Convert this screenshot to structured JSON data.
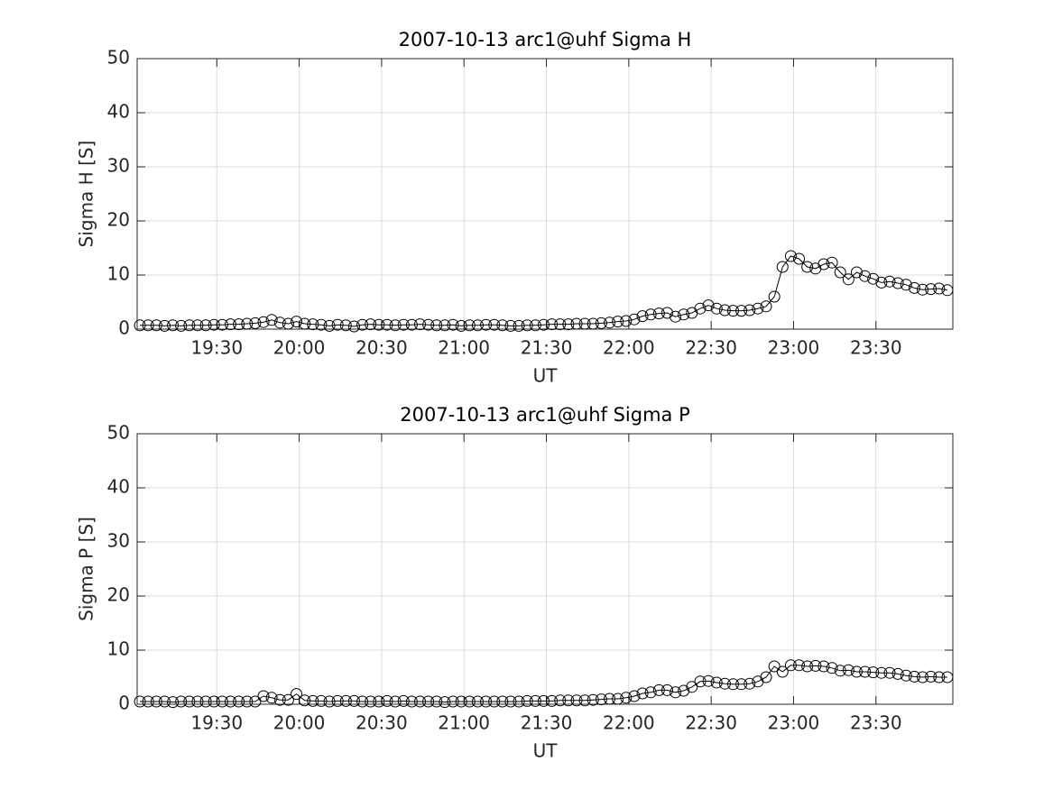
{
  "chart_data": [
    {
      "type": "line",
      "title": "2007-10-13  arc1@uhf Sigma H",
      "xlabel": "UT",
      "ylabel": "Sigma H [S]",
      "xlim": [
        "19:01",
        "23:58"
      ],
      "xticks": [
        "19:30",
        "20:00",
        "20:30",
        "21:00",
        "21:30",
        "22:00",
        "22:30",
        "23:00",
        "23:30"
      ],
      "ylim": [
        0,
        50
      ],
      "yticks": [
        0,
        10,
        20,
        30,
        40,
        50
      ],
      "grid": true,
      "x": [
        "19:02",
        "19:05",
        "19:08",
        "19:11",
        "19:14",
        "19:17",
        "19:20",
        "19:23",
        "19:26",
        "19:29",
        "19:32",
        "19:35",
        "19:38",
        "19:41",
        "19:44",
        "19:47",
        "19:50",
        "19:53",
        "19:56",
        "19:59",
        "20:02",
        "20:05",
        "20:08",
        "20:11",
        "20:14",
        "20:17",
        "20:20",
        "20:23",
        "20:26",
        "20:29",
        "20:32",
        "20:35",
        "20:38",
        "20:41",
        "20:44",
        "20:47",
        "20:50",
        "20:53",
        "20:56",
        "20:59",
        "21:02",
        "21:05",
        "21:08",
        "21:11",
        "21:14",
        "21:17",
        "21:20",
        "21:23",
        "21:26",
        "21:29",
        "21:32",
        "21:35",
        "21:38",
        "21:41",
        "21:44",
        "21:47",
        "21:50",
        "21:53",
        "21:56",
        "21:59",
        "22:02",
        "22:05",
        "22:08",
        "22:11",
        "22:14",
        "22:17",
        "22:20",
        "22:23",
        "22:26",
        "22:29",
        "22:32",
        "22:35",
        "22:38",
        "22:41",
        "22:44",
        "22:47",
        "22:50",
        "22:53",
        "22:56",
        "22:59",
        "23:02",
        "23:05",
        "23:08",
        "23:11",
        "23:14",
        "23:17",
        "23:20",
        "23:23",
        "23:26",
        "23:29",
        "23:32",
        "23:35",
        "23:38",
        "23:41",
        "23:44",
        "23:47",
        "23:50",
        "23:53",
        "23:56"
      ],
      "series": [
        {
          "color": "#000000",
          "marker": "circle",
          "values": [
            0.7,
            0.7,
            0.7,
            0.6,
            0.7,
            0.6,
            0.7,
            0.7,
            0.7,
            0.8,
            0.8,
            0.9,
            0.9,
            1.0,
            1.1,
            1.3,
            1.7,
            1.2,
            1.0,
            1.4,
            1.0,
            0.9,
            0.8,
            0.6,
            0.8,
            0.7,
            0.5,
            0.8,
            0.9,
            0.8,
            0.8,
            0.7,
            0.8,
            0.8,
            0.9,
            0.8,
            0.7,
            0.7,
            0.8,
            0.6,
            0.7,
            0.7,
            0.8,
            0.8,
            0.7,
            0.6,
            0.6,
            0.7,
            0.7,
            0.8,
            0.9,
            0.9,
            0.9,
            1.0,
            1.0,
            1.0,
            1.1,
            1.2,
            1.4,
            1.5,
            1.8,
            2.4,
            2.7,
            2.9,
            3.0,
            2.3,
            2.7,
            3.0,
            3.8,
            4.4,
            3.8,
            3.5,
            3.4,
            3.4,
            3.5,
            3.8,
            4.2,
            6.0,
            11.5,
            13.5,
            13.0,
            11.5,
            11.2,
            12.0,
            12.3,
            10.5,
            9.2,
            10.5,
            9.8,
            9.3,
            8.6,
            8.8,
            8.5,
            8.2,
            7.6,
            7.3,
            7.4,
            7.5,
            7.2
          ]
        }
      ]
    },
    {
      "type": "line",
      "title": "2007-10-13  arc1@uhf Sigma P",
      "xlabel": "UT",
      "ylabel": "Sigma P [S]",
      "xlim": [
        "19:01",
        "23:58"
      ],
      "xticks": [
        "19:30",
        "20:00",
        "20:30",
        "21:00",
        "21:30",
        "22:00",
        "22:30",
        "23:00",
        "23:30"
      ],
      "ylim": [
        0,
        50
      ],
      "yticks": [
        0,
        10,
        20,
        30,
        40,
        50
      ],
      "grid": true,
      "x": [
        "19:02",
        "19:05",
        "19:08",
        "19:11",
        "19:14",
        "19:17",
        "19:20",
        "19:23",
        "19:26",
        "19:29",
        "19:32",
        "19:35",
        "19:38",
        "19:41",
        "19:44",
        "19:47",
        "19:50",
        "19:53",
        "19:56",
        "19:59",
        "20:02",
        "20:05",
        "20:08",
        "20:11",
        "20:14",
        "20:17",
        "20:20",
        "20:23",
        "20:26",
        "20:29",
        "20:32",
        "20:35",
        "20:38",
        "20:41",
        "20:44",
        "20:47",
        "20:50",
        "20:53",
        "20:56",
        "20:59",
        "21:02",
        "21:05",
        "21:08",
        "21:11",
        "21:14",
        "21:17",
        "21:20",
        "21:23",
        "21:26",
        "21:29",
        "21:32",
        "21:35",
        "21:38",
        "21:41",
        "21:44",
        "21:47",
        "21:50",
        "21:53",
        "21:56",
        "21:59",
        "22:02",
        "22:05",
        "22:08",
        "22:11",
        "22:14",
        "22:17",
        "22:20",
        "22:23",
        "22:26",
        "22:29",
        "22:32",
        "22:35",
        "22:38",
        "22:41",
        "22:44",
        "22:47",
        "22:50",
        "22:53",
        "22:56",
        "22:59",
        "23:02",
        "23:05",
        "23:08",
        "23:11",
        "23:14",
        "23:17",
        "23:20",
        "23:23",
        "23:26",
        "23:29",
        "23:32",
        "23:35",
        "23:38",
        "23:41",
        "23:44",
        "23:47",
        "23:50",
        "23:53",
        "23:56"
      ],
      "series": [
        {
          "color": "#000000",
          "marker": "circle",
          "values": [
            0.5,
            0.5,
            0.5,
            0.5,
            0.4,
            0.5,
            0.5,
            0.5,
            0.5,
            0.5,
            0.5,
            0.5,
            0.5,
            0.5,
            0.5,
            1.5,
            1.2,
            0.8,
            0.8,
            1.9,
            0.7,
            0.6,
            0.6,
            0.5,
            0.6,
            0.6,
            0.6,
            0.5,
            0.5,
            0.5,
            0.6,
            0.5,
            0.6,
            0.5,
            0.5,
            0.5,
            0.5,
            0.4,
            0.5,
            0.5,
            0.5,
            0.5,
            0.5,
            0.5,
            0.5,
            0.5,
            0.5,
            0.6,
            0.6,
            0.6,
            0.6,
            0.7,
            0.7,
            0.7,
            0.7,
            0.8,
            0.9,
            1.0,
            1.0,
            1.2,
            1.5,
            2.0,
            2.2,
            2.6,
            2.6,
            2.2,
            2.5,
            3.2,
            4.2,
            4.3,
            4.0,
            3.8,
            3.7,
            3.7,
            3.8,
            4.2,
            5.0,
            7.0,
            6.0,
            7.2,
            7.2,
            7.0,
            7.1,
            7.0,
            6.7,
            6.2,
            6.3,
            6.0,
            6.0,
            5.9,
            5.8,
            5.8,
            5.6,
            5.3,
            5.1,
            5.0,
            5.1,
            5.0,
            5.0
          ]
        }
      ]
    }
  ]
}
